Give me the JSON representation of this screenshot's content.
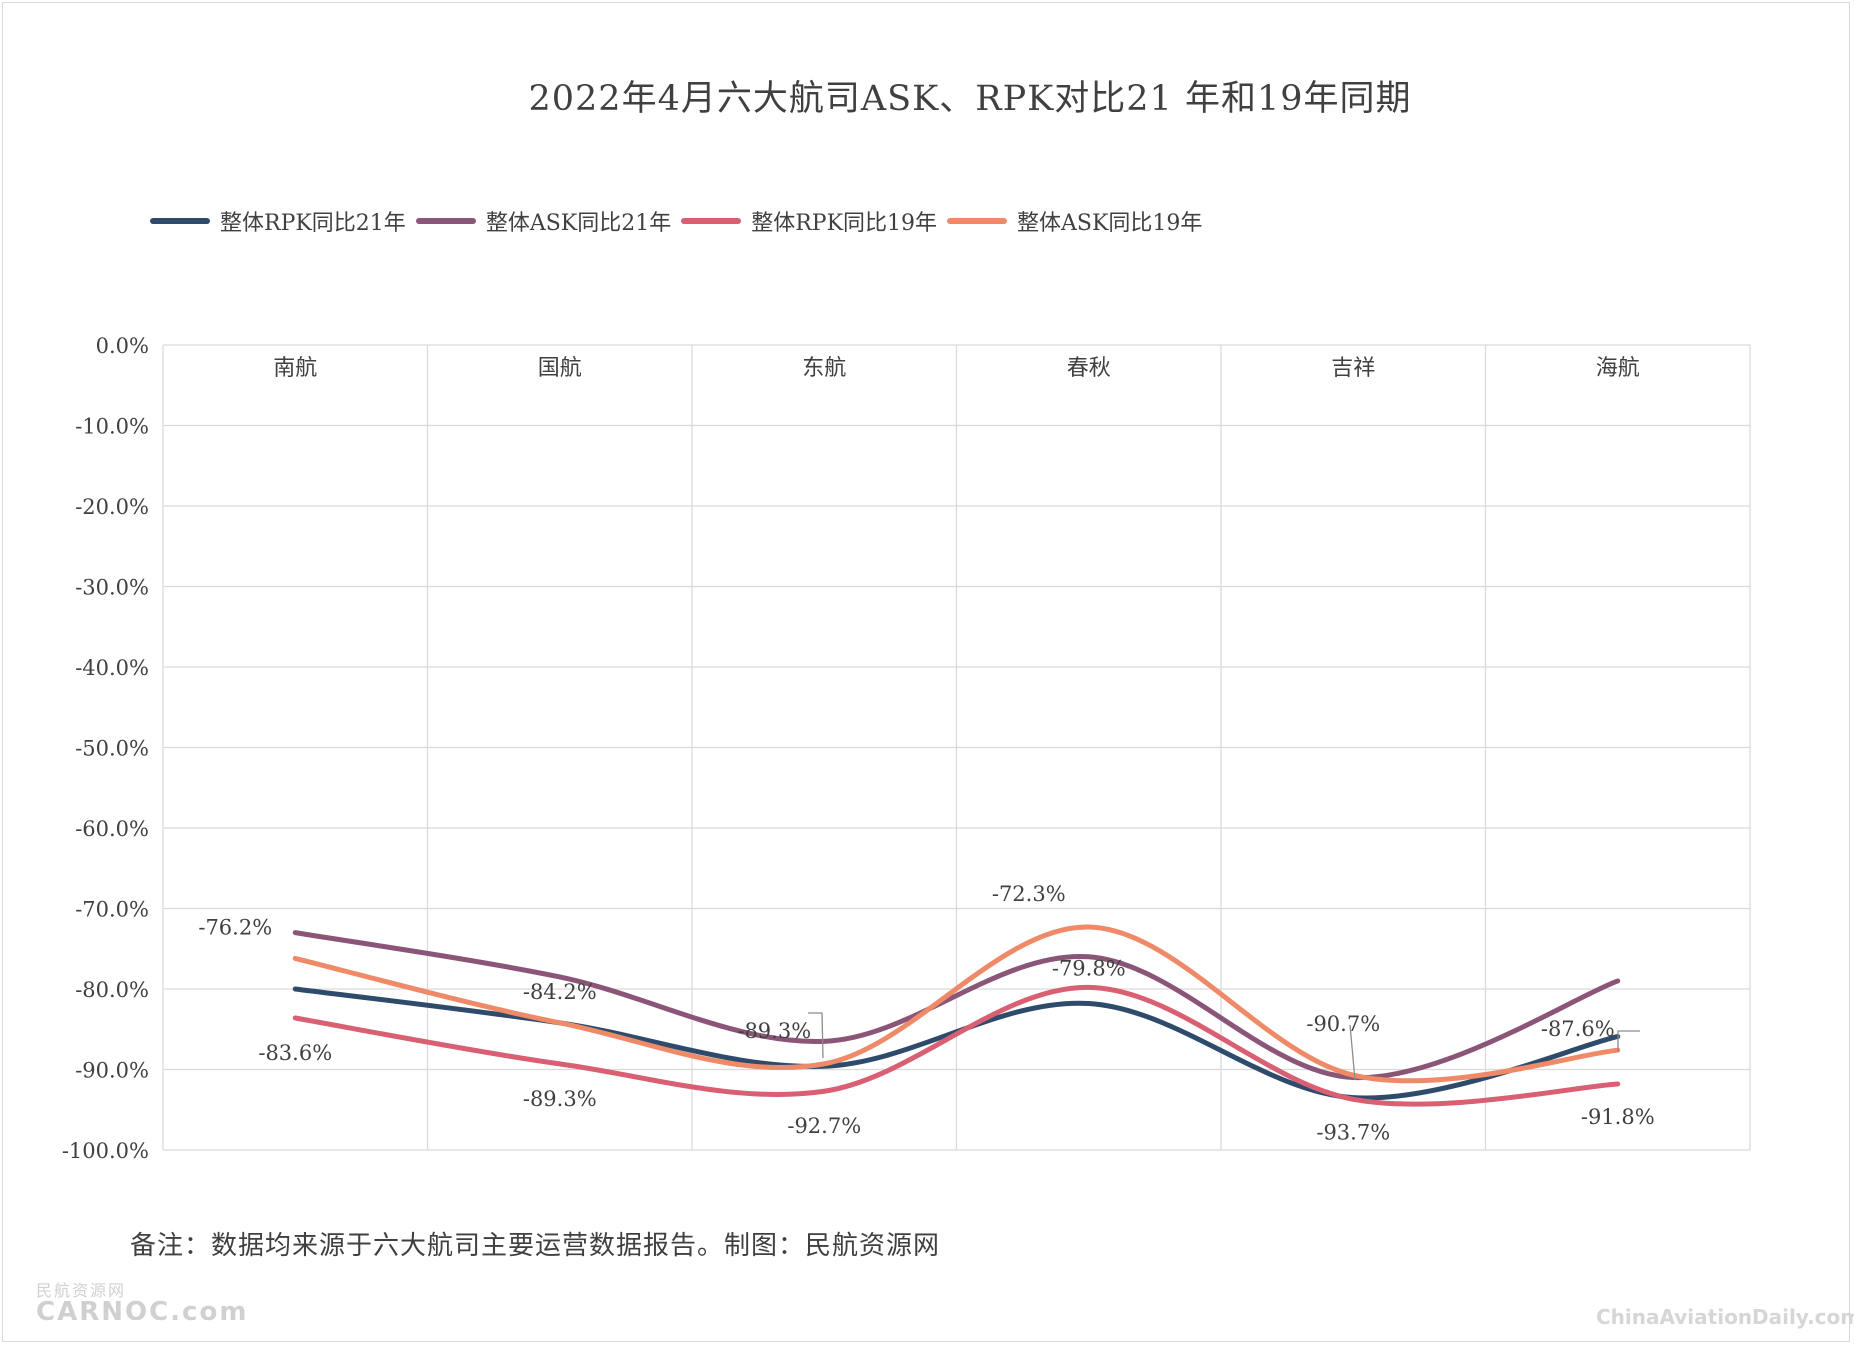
{
  "chart_data": {
    "type": "line",
    "title": "2022年4月六大航司ASK、RPK对比21 年和19年同期",
    "categories": [
      "南航",
      "国航",
      "东航",
      "春秋",
      "吉祥",
      "海航"
    ],
    "ylim": [
      -100,
      0
    ],
    "yticks": [
      0,
      -10,
      -20,
      -30,
      -40,
      -50,
      -60,
      -70,
      -80,
      -90,
      -100
    ],
    "ytick_labels": [
      "0.0%",
      "-10.0%",
      "-20.0%",
      "-30.0%",
      "-40.0%",
      "-50.0%",
      "-60.0%",
      "-70.0%",
      "-80.0%",
      "-90.0%",
      "-100.0%"
    ],
    "grid": true,
    "legend_position": "top-left",
    "series": [
      {
        "name": "整体RPK同比21年",
        "color": "#2f4b6b",
        "values": [
          -80.0,
          -84.2,
          -89.6,
          -81.8,
          -93.5,
          -85.9
        ]
      },
      {
        "name": "整体ASK同比21年",
        "color": "#8b5578",
        "values": [
          -73.0,
          -78.5,
          -86.5,
          -76.0,
          -91.0,
          -79.0
        ]
      },
      {
        "name": "整体RPK同比19年",
        "color": "#d95f72",
        "values": [
          -83.6,
          -89.3,
          -92.7,
          -79.8,
          -93.7,
          -91.8
        ]
      },
      {
        "name": "整体ASK同比19年",
        "color": "#ee8a68",
        "values": [
          -76.2,
          -84.2,
          -89.3,
          -72.3,
          -90.7,
          -87.6
        ]
      }
    ],
    "data_labels": [
      {
        "text": "-76.2%",
        "category": "南航",
        "value": -76.2
      },
      {
        "text": "-83.6%",
        "category": "南航",
        "value": -83.6
      },
      {
        "text": "-84.2%",
        "category": "国航",
        "value": -84.2
      },
      {
        "text": "-89.3%",
        "category": "国航",
        "value": -89.3
      },
      {
        "text": "-89.3%",
        "category": "东航",
        "value": -89.3
      },
      {
        "text": "-92.7%",
        "category": "东航",
        "value": -92.7
      },
      {
        "text": "-72.3%",
        "category": "春秋",
        "value": -72.3
      },
      {
        "text": "-79.8%",
        "category": "春秋",
        "value": -79.8
      },
      {
        "text": "-90.7%",
        "category": "吉祥",
        "value": -90.7
      },
      {
        "text": "-93.7%",
        "category": "吉祥",
        "value": -93.7
      },
      {
        "text": "-87.6%",
        "category": "海航",
        "value": -87.6
      },
      {
        "text": "-91.8%",
        "category": "海航",
        "value": -91.8
      }
    ]
  },
  "note": "备注：数据均来源于六大航司主要运营数据报告。制图：民航资源网",
  "watermark_left_cn": "民航资源网",
  "watermark_left_en": "CARNOC.com",
  "watermark_right": "ChinaAviationDaily.com"
}
